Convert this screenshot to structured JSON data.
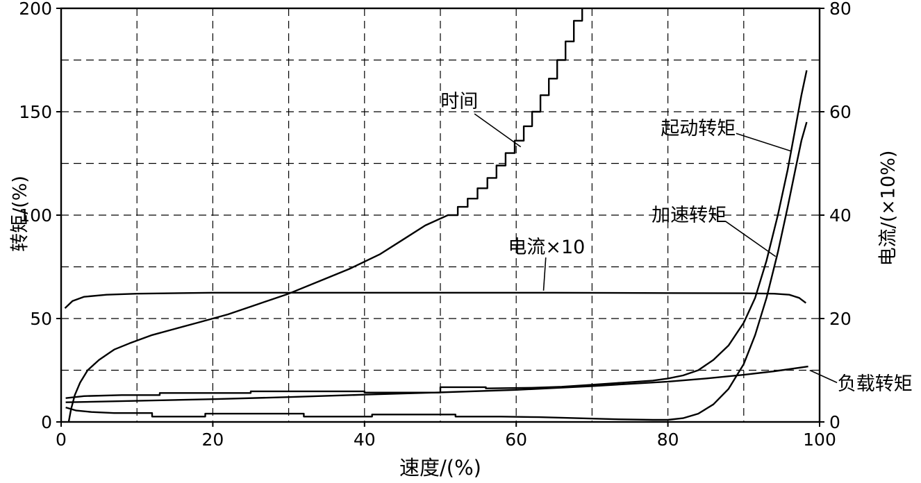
{
  "chart_data": {
    "type": "line",
    "title": "",
    "xlabel": "速度/(%)",
    "ylabel_left": "转矩/(%)",
    "ylabel_right": "电流/(×10%)",
    "xlim": [
      0,
      100
    ],
    "ylim_left": [
      0,
      200
    ],
    "ylim_right": [
      0,
      80
    ],
    "x_tick_labels": [
      0,
      20,
      40,
      60,
      80,
      100
    ],
    "y_tick_labels_left": [
      0,
      50,
      100,
      150,
      200
    ],
    "y_tick_labels_right": [
      0,
      20,
      40,
      60,
      80
    ],
    "x_grid_step": 10,
    "y_grid_step": 25,
    "grid_style": "dashed",
    "line_color": "#000000",
    "background_color": "#ffffff",
    "series": [
      {
        "id": "time",
        "name": "时间",
        "points": [
          [
            1,
            0
          ],
          [
            1.3,
            6
          ],
          [
            1.8,
            13
          ],
          [
            2.5,
            19
          ],
          [
            3.5,
            25
          ],
          [
            5,
            30
          ],
          [
            7,
            35
          ],
          [
            9,
            38
          ],
          [
            12,
            42
          ],
          [
            15,
            45
          ],
          [
            18,
            48
          ],
          [
            22,
            52
          ],
          [
            26,
            57
          ],
          [
            30,
            62
          ],
          [
            34,
            68
          ],
          [
            38,
            74
          ],
          [
            42,
            81
          ],
          [
            45,
            88
          ],
          [
            48,
            95
          ],
          [
            51,
            100
          ],
          [
            52.3,
            100
          ],
          [
            52.3,
            104
          ],
          [
            53.6,
            104
          ],
          [
            53.6,
            108
          ],
          [
            54.9,
            108
          ],
          [
            54.9,
            113
          ],
          [
            56.2,
            113
          ],
          [
            56.2,
            118
          ],
          [
            57.4,
            118
          ],
          [
            57.4,
            124
          ],
          [
            58.6,
            124
          ],
          [
            58.6,
            130
          ],
          [
            59.8,
            130
          ],
          [
            59.8,
            136
          ],
          [
            61,
            136
          ],
          [
            61,
            143
          ],
          [
            62.1,
            143
          ],
          [
            62.1,
            150
          ],
          [
            63.2,
            150
          ],
          [
            63.2,
            158
          ],
          [
            64.3,
            158
          ],
          [
            64.3,
            166
          ],
          [
            65.4,
            166
          ],
          [
            65.4,
            175
          ],
          [
            66.5,
            175
          ],
          [
            66.5,
            184
          ],
          [
            67.6,
            184
          ],
          [
            67.6,
            194
          ],
          [
            68.7,
            194
          ],
          [
            68.7,
            204
          ]
        ]
      },
      {
        "id": "current",
        "name": "电流×10",
        "points": [
          [
            0.5,
            55
          ],
          [
            1.5,
            58.5
          ],
          [
            3,
            60.5
          ],
          [
            6,
            61.5
          ],
          [
            10,
            62
          ],
          [
            20,
            62.5
          ],
          [
            35,
            62.5
          ],
          [
            50,
            62.5
          ],
          [
            65,
            62.5
          ],
          [
            80,
            62.3
          ],
          [
            90,
            62.2
          ],
          [
            94,
            62
          ],
          [
            96,
            61.5
          ],
          [
            97.3,
            60
          ],
          [
            98.2,
            57.5
          ]
        ]
      },
      {
        "id": "start-torque",
        "name": "起动转矩",
        "points": [
          [
            0.6,
            11.5
          ],
          [
            3,
            12.5
          ],
          [
            8,
            13
          ],
          [
            13,
            13
          ],
          [
            13,
            14
          ],
          [
            25,
            14
          ],
          [
            25,
            14.8
          ],
          [
            40,
            14.8
          ],
          [
            40,
            14.2
          ],
          [
            50,
            14.2
          ],
          [
            50,
            16.8
          ],
          [
            56,
            16.8
          ],
          [
            56,
            16.2
          ],
          [
            62,
            16.5
          ],
          [
            66,
            17
          ],
          [
            70,
            18
          ],
          [
            74,
            19
          ],
          [
            78,
            20
          ],
          [
            80,
            21
          ],
          [
            82,
            22.5
          ],
          [
            84,
            25
          ],
          [
            86,
            30
          ],
          [
            88,
            37
          ],
          [
            90,
            48
          ],
          [
            91.5,
            60
          ],
          [
            93,
            78
          ],
          [
            94.5,
            100
          ],
          [
            95.8,
            122
          ],
          [
            96.8,
            142
          ],
          [
            97.6,
            158
          ],
          [
            98.3,
            170
          ]
        ]
      },
      {
        "id": "accel-torque",
        "name": "加速转矩",
        "points": [
          [
            0.6,
            7
          ],
          [
            2,
            5.5
          ],
          [
            4,
            4.8
          ],
          [
            7,
            4.3
          ],
          [
            12,
            4.3
          ],
          [
            12,
            2.6
          ],
          [
            19,
            2.6
          ],
          [
            19,
            4
          ],
          [
            32,
            4
          ],
          [
            32,
            2.6
          ],
          [
            41,
            2.6
          ],
          [
            41,
            3.6
          ],
          [
            52,
            3.6
          ],
          [
            52,
            2.6
          ],
          [
            58,
            2.6
          ],
          [
            63,
            2.3
          ],
          [
            68,
            1.8
          ],
          [
            73,
            1.3
          ],
          [
            78,
            1
          ],
          [
            80,
            1
          ],
          [
            82,
            1.8
          ],
          [
            84,
            4
          ],
          [
            86,
            8.5
          ],
          [
            88,
            16
          ],
          [
            90,
            28
          ],
          [
            91.5,
            42
          ],
          [
            93,
            60
          ],
          [
            94.5,
            82
          ],
          [
            95.8,
            104
          ],
          [
            96.8,
            122
          ],
          [
            97.6,
            136
          ],
          [
            98.3,
            145
          ]
        ]
      },
      {
        "id": "load-torque",
        "name": "负载转矩",
        "points": [
          [
            0.6,
            9.5
          ],
          [
            10,
            10.2
          ],
          [
            20,
            11
          ],
          [
            30,
            12
          ],
          [
            40,
            13.2
          ],
          [
            50,
            14.3
          ],
          [
            60,
            15.5
          ],
          [
            70,
            17.3
          ],
          [
            80,
            19.5
          ],
          [
            85,
            21
          ],
          [
            90,
            22.8
          ],
          [
            94,
            24.5
          ],
          [
            98.5,
            26.8
          ]
        ]
      }
    ],
    "annotations": [
      {
        "id": "time-label",
        "text": "时间",
        "x": 52.5,
        "y": 155,
        "leader": [
          [
            54.5,
            149
          ],
          [
            60.6,
            133
          ]
        ]
      },
      {
        "id": "start-torque-label",
        "text": "起动转矩",
        "x": 84,
        "y": 142,
        "leader": [
          [
            89,
            139.5
          ],
          [
            96.2,
            131
          ]
        ]
      },
      {
        "id": "accel-torque-label",
        "text": "加速转矩",
        "x": 82.8,
        "y": 100,
        "leader": [
          [
            87.6,
            97
          ],
          [
            94.2,
            80
          ]
        ]
      },
      {
        "id": "current-label",
        "text": "电流×10",
        "x": 64,
        "y": 84.5,
        "leader": [
          [
            63.9,
            79.5
          ],
          [
            63.6,
            63.5
          ]
        ]
      },
      {
        "id": "load-torque-label",
        "text": "负载转矩",
        "x": 107.3,
        "y": 18.5,
        "leader": [
          [
            102.3,
            19
          ],
          [
            98.7,
            25
          ]
        ]
      }
    ]
  }
}
